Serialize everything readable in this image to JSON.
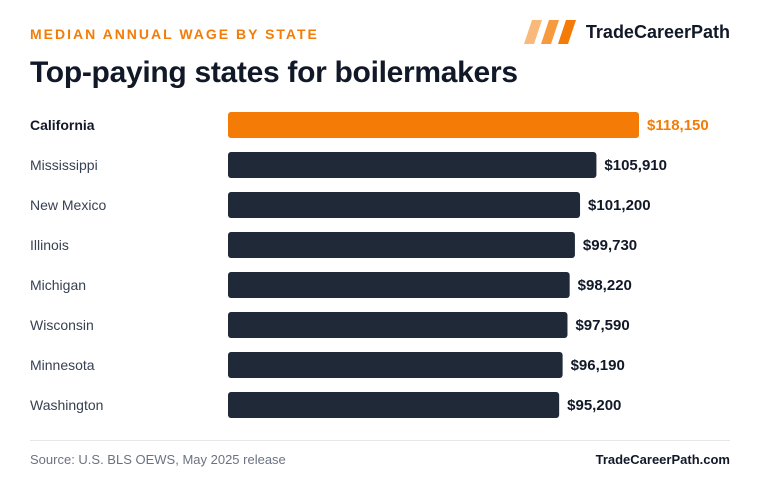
{
  "header": {
    "eyebrow": "MEDIAN ANNUAL WAGE BY STATE",
    "title": "Top-paying states for boilermakers",
    "brand_name": "TradeCareerPath",
    "brand_icon": "stripes-logo-icon"
  },
  "colors": {
    "accent": "#f47c06",
    "bar": "#1f2937",
    "text": "#111827",
    "muted": "#6b7280"
  },
  "chart_data": {
    "type": "bar",
    "orientation": "horizontal",
    "title": "Top-paying states for boilermakers",
    "subtitle": "MEDIAN ANNUAL WAGE BY STATE",
    "categories": [
      "California",
      "Mississippi",
      "New Mexico",
      "Illinois",
      "Michigan",
      "Wisconsin",
      "Minnesota",
      "Washington"
    ],
    "values": [
      118150,
      105910,
      101200,
      99730,
      98220,
      97590,
      96190,
      95200
    ],
    "value_labels": [
      "$118,150",
      "$105,910",
      "$101,200",
      "$99,730",
      "$98,220",
      "$97,590",
      "$96,190",
      "$95,200"
    ],
    "highlight": "California",
    "xlabel": "",
    "ylabel": "",
    "grid": false,
    "legend": "none"
  },
  "footer": {
    "source": "Source: U.S. BLS OEWS, May 2025 release",
    "site": "TradeCareerPath.com"
  }
}
